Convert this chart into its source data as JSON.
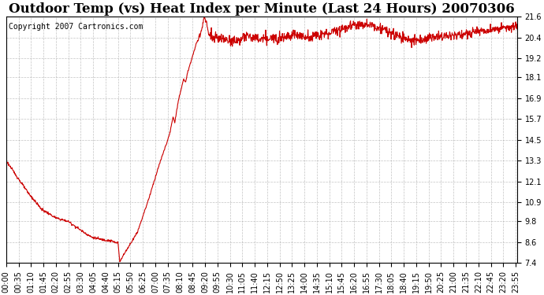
{
  "title": "Outdoor Temp (vs) Heat Index per Minute (Last 24 Hours) 20070306",
  "copyright_text": "Copyright 2007 Cartronics.com",
  "line_color": "#cc0000",
  "background_color": "#ffffff",
  "grid_color": "#aaaaaa",
  "ylim": [
    7.4,
    21.6
  ],
  "yticks": [
    7.4,
    8.6,
    9.8,
    10.9,
    12.1,
    13.3,
    14.5,
    15.7,
    16.9,
    18.1,
    19.2,
    20.4,
    21.6
  ],
  "xtick_interval_min": 35,
  "title_fontsize": 12,
  "copyright_fontsize": 7,
  "tick_fontsize": 7,
  "line_width": 0.8
}
